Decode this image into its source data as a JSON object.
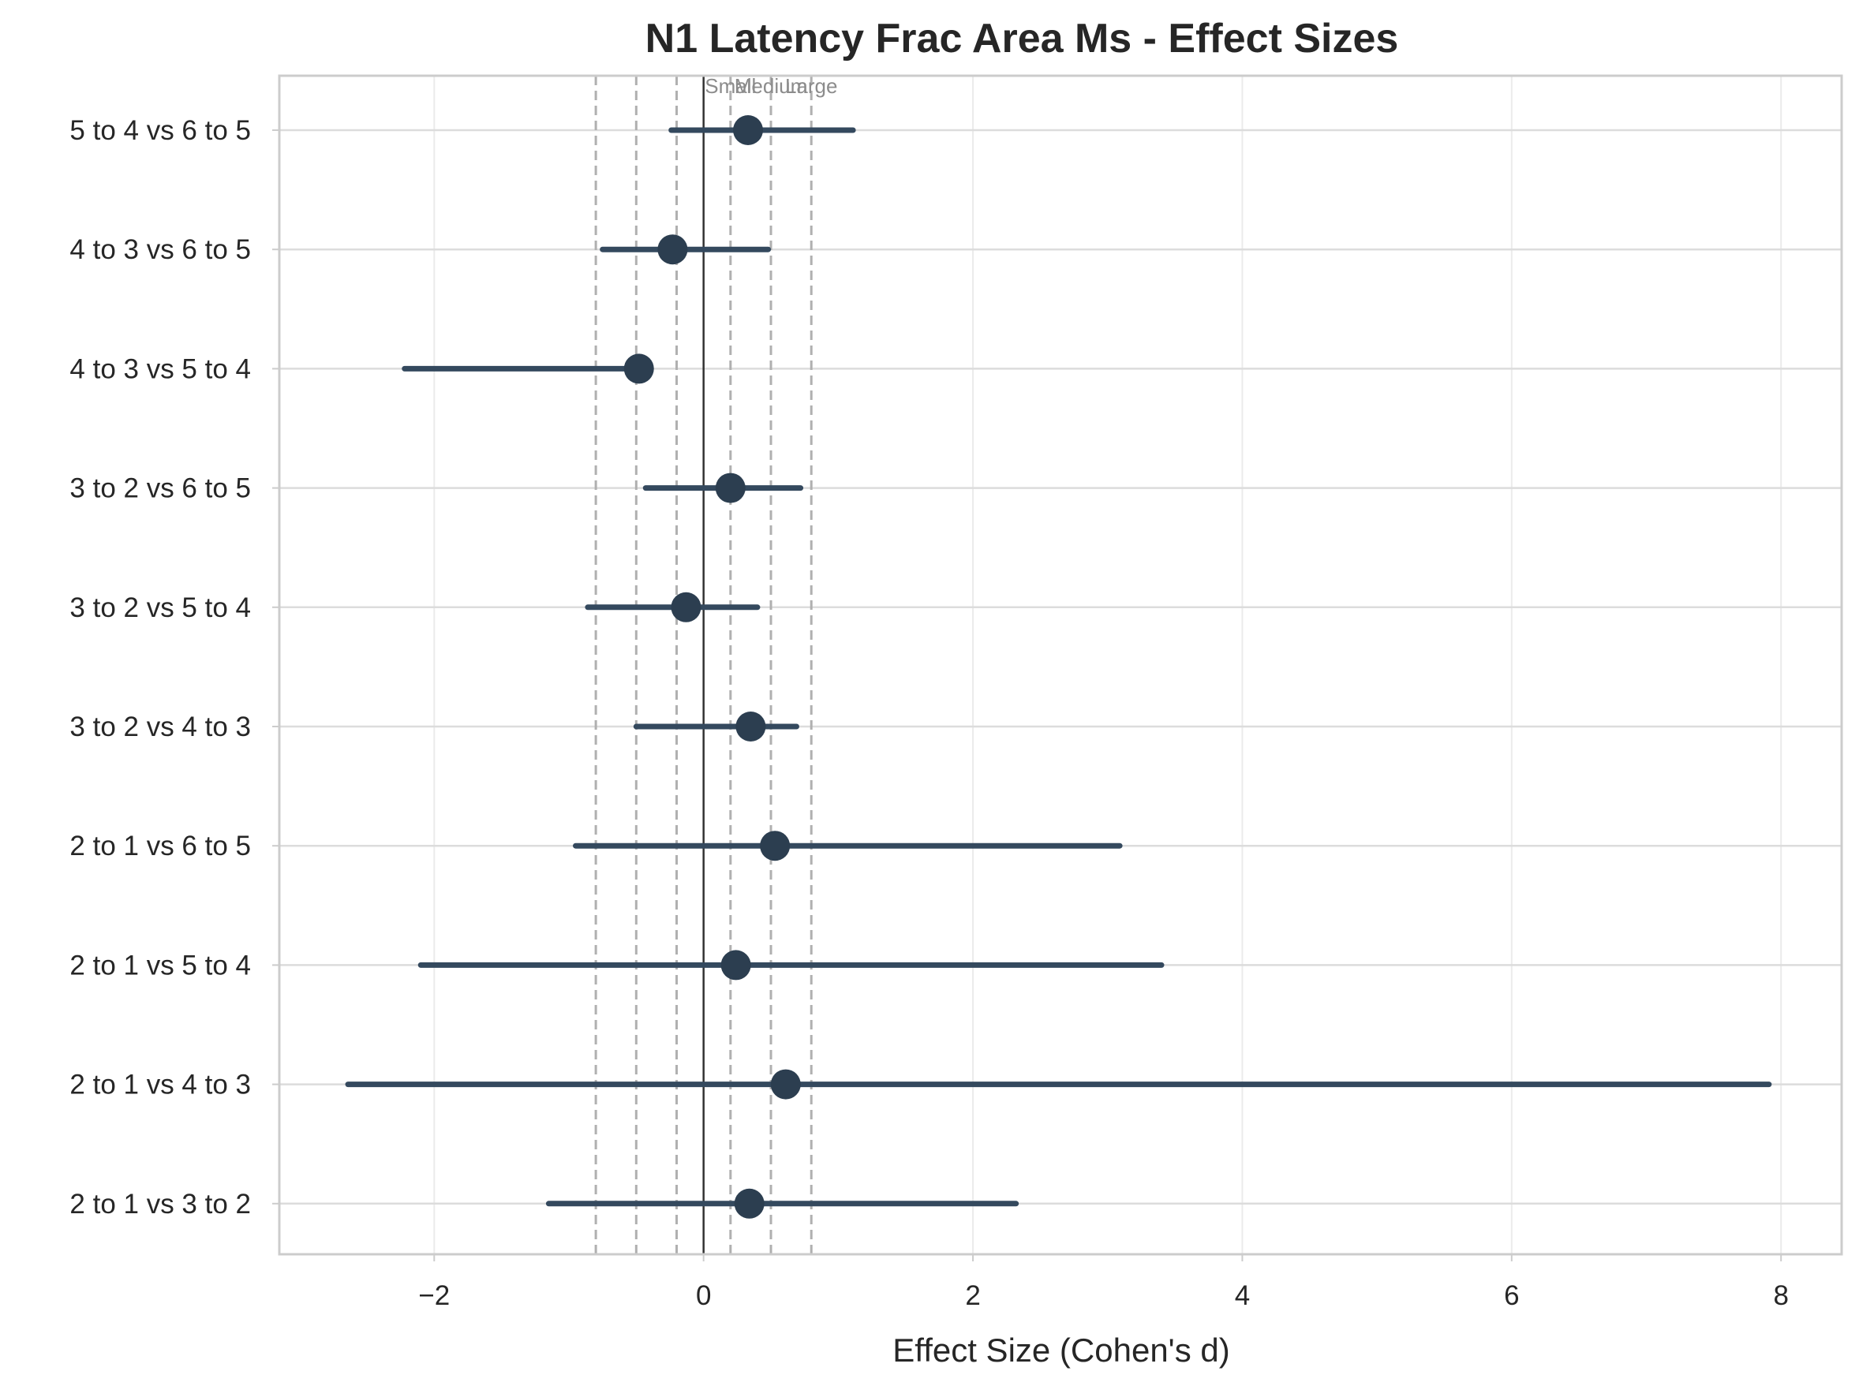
{
  "chart_data": {
    "type": "forest",
    "title": "N1 Latency Frac Area Ms - Effect Sizes",
    "xlabel": "Effect Size (Cohen's d)",
    "ylabel": "",
    "xlim": [
      -3.15,
      8.45
    ],
    "xticks": [
      -2,
      0,
      2,
      4,
      6,
      8
    ],
    "xtick_labels": [
      "−2",
      "0",
      "2",
      "4",
      "6",
      "8"
    ],
    "grid": true,
    "colors": {
      "point": "#2c3e50",
      "ci": "#34495e",
      "grid": "#dcdcdc",
      "ref_line": "#b0b0b0",
      "zero_line": "#333333",
      "spine": "#cccccc"
    },
    "reference_lines": [
      {
        "value": -0.8,
        "label": ""
      },
      {
        "value": -0.5,
        "label": ""
      },
      {
        "value": -0.2,
        "label": ""
      },
      {
        "value": 0.2,
        "label": "Small"
      },
      {
        "value": 0.5,
        "label": "Medium"
      },
      {
        "value": 0.8,
        "label": "Large"
      }
    ],
    "comparisons": [
      {
        "label": "5 to 4 vs 6 to 5",
        "d": 0.33,
        "ci_low": -0.24,
        "ci_high": 1.11
      },
      {
        "label": "4 to 3 vs 6 to 5",
        "d": -0.23,
        "ci_low": -0.75,
        "ci_high": 0.48
      },
      {
        "label": "4 to 3 vs 5 to 4",
        "d": -0.48,
        "ci_low": -2.22,
        "ci_high": -0.48
      },
      {
        "label": "3 to 2 vs 6 to 5",
        "d": 0.2,
        "ci_low": -0.43,
        "ci_high": 0.72
      },
      {
        "label": "3 to 2 vs 5 to 4",
        "d": -0.13,
        "ci_low": -0.86,
        "ci_high": 0.4
      },
      {
        "label": "3 to 2 vs 4 to 3",
        "d": 0.35,
        "ci_low": -0.5,
        "ci_high": 0.69
      },
      {
        "label": "2 to 1 vs 6 to 5",
        "d": 0.53,
        "ci_low": -0.95,
        "ci_high": 3.09
      },
      {
        "label": "2 to 1 vs 5 to 4",
        "d": 0.24,
        "ci_low": -2.1,
        "ci_high": 3.4
      },
      {
        "label": "2 to 1 vs 4 to 3",
        "d": 0.61,
        "ci_low": -2.64,
        "ci_high": 7.91
      },
      {
        "label": "2 to 1 vs 3 to 2",
        "d": 0.34,
        "ci_low": -1.15,
        "ci_high": 2.32
      }
    ]
  }
}
